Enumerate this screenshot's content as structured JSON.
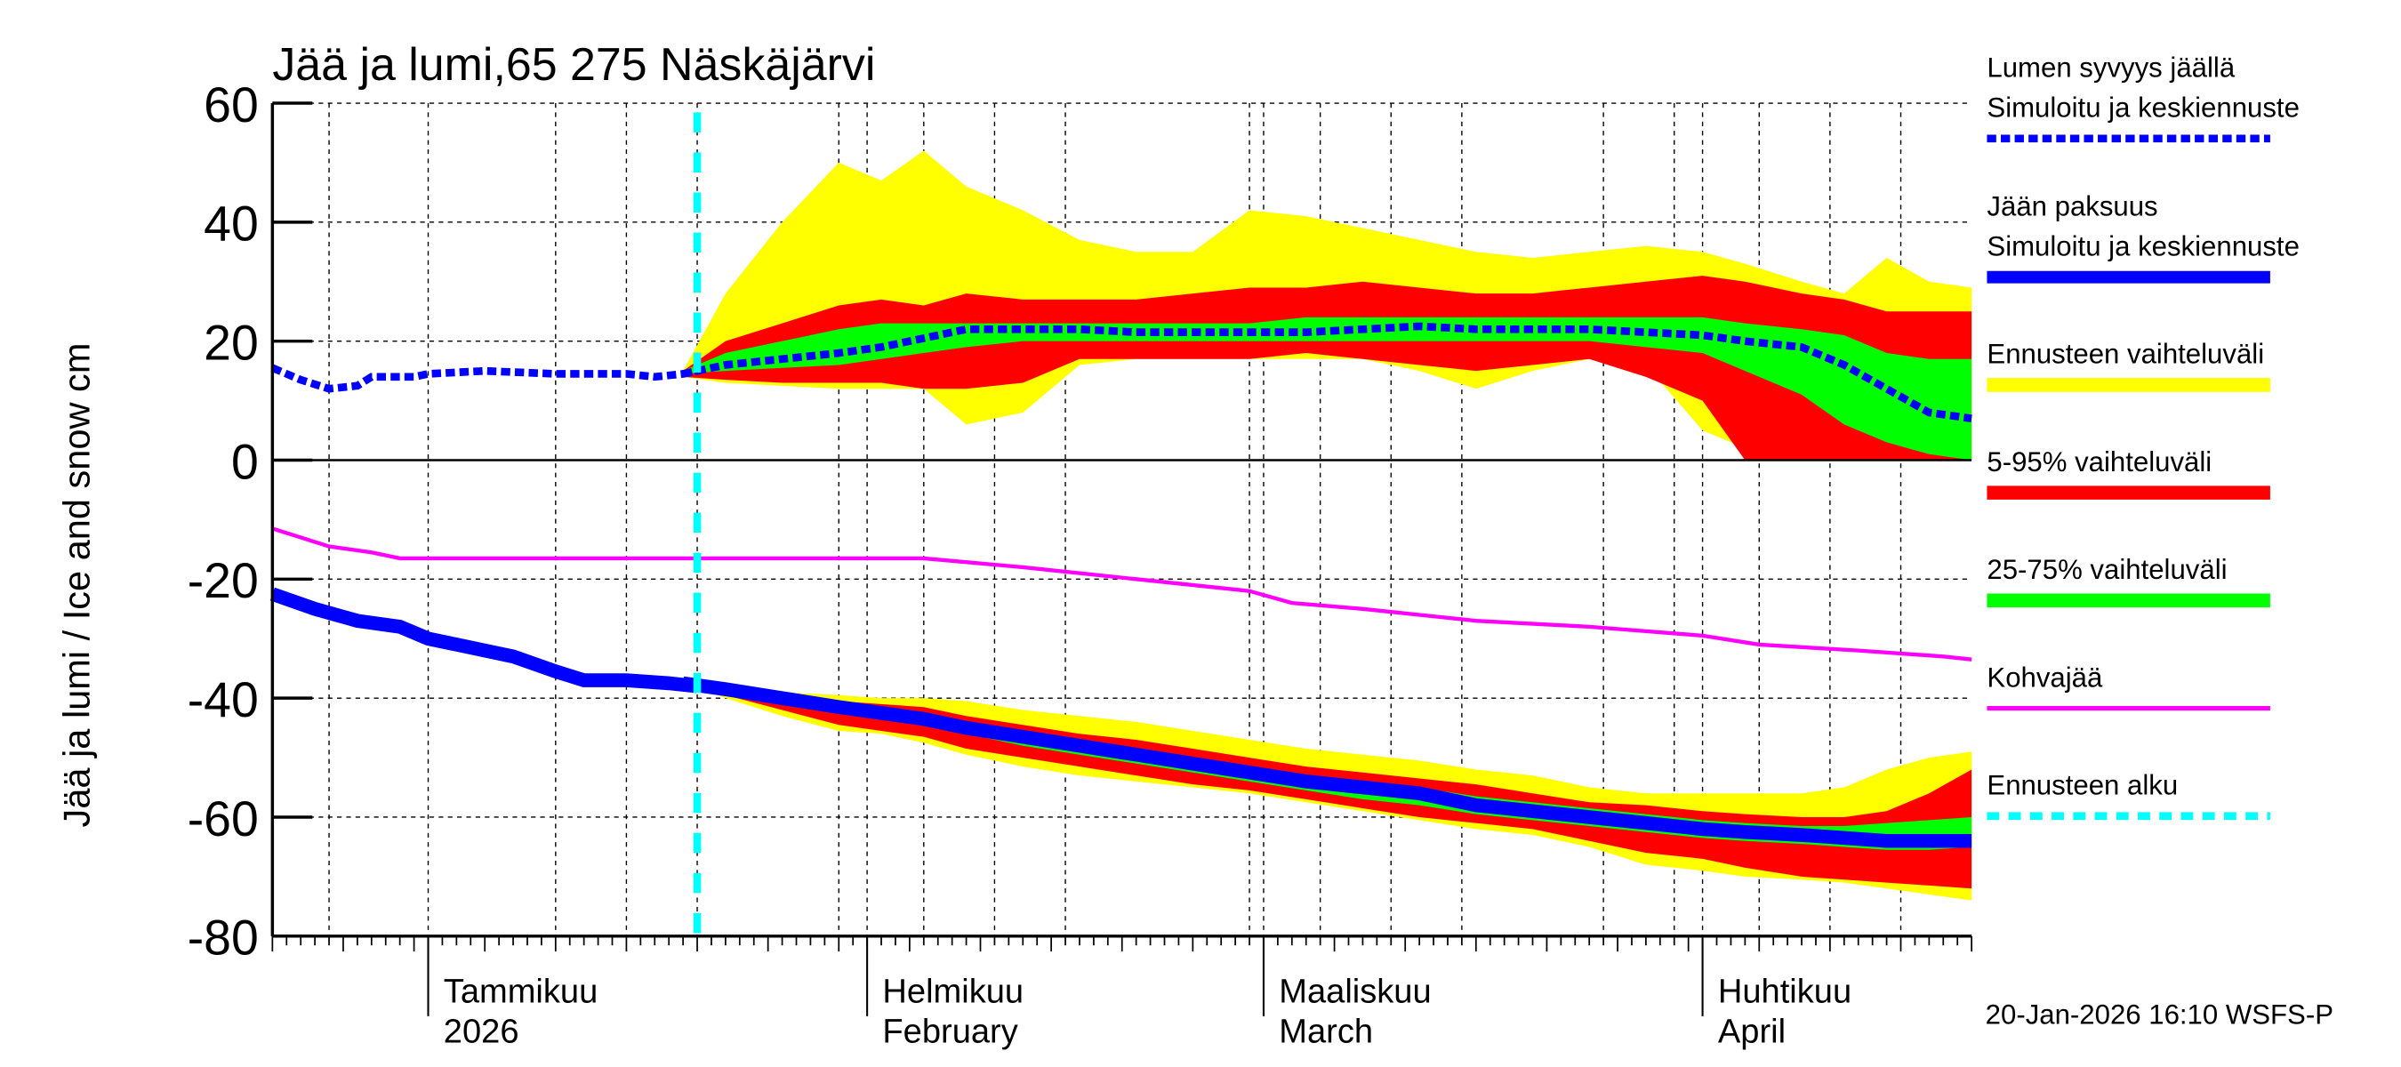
{
  "chart_data": {
    "type": "area",
    "title": "Jää ja lumi,65 275 Näskäjärvi",
    "ylabel": "Jää ja lumi / Ice and snow    cm",
    "ylim": [
      -80,
      60
    ],
    "yticks": [
      60,
      40,
      20,
      0,
      -20,
      -40,
      -60,
      -80
    ],
    "xlim": [
      "2025-12-21",
      "2026-04-20"
    ],
    "grid": true,
    "legend_position": "right",
    "month_labels": [
      {
        "fi": "Tammikuu",
        "en": "2026",
        "date": "2026-01-01"
      },
      {
        "fi": "Helmikuu",
        "en": "February",
        "date": "2026-02-01"
      },
      {
        "fi": "Maaliskuu",
        "en": "March",
        "date": "2026-03-01"
      },
      {
        "fi": "Huhtikuu",
        "en": "April",
        "date": "2026-04-01"
      }
    ],
    "forecast_start": "2026-01-20",
    "footer": "20-Jan-2026 16:10 WSFS-P",
    "legend": [
      {
        "title": "Lumen syvyys jäällä",
        "label": "Simuloitu ja keskiennuste",
        "color": "#0000ff",
        "style": "dotted-thick"
      },
      {
        "title": "Jään paksuus",
        "label": "Simuloitu ja keskiennuste",
        "color": "#0000ff",
        "style": "solid-thick"
      },
      {
        "title": "",
        "label": "Ennusteen vaihteluväli",
        "color": "#ffff00",
        "style": "band"
      },
      {
        "title": "",
        "label": "5-95% vaihteluväli",
        "color": "#ff0000",
        "style": "band"
      },
      {
        "title": "",
        "label": "25-75% vaihteluväli",
        "color": "#00ff00",
        "style": "band"
      },
      {
        "title": "",
        "label": "Kohvajää",
        "color": "#ff00ff",
        "style": "solid"
      },
      {
        "title": "",
        "label": "Ennusteen alku",
        "color": "#00ffff",
        "style": "dashed"
      }
    ],
    "history": {
      "snow": {
        "x": [
          "2025-12-21",
          "2025-12-23",
          "2025-12-25",
          "2025-12-27",
          "2025-12-28",
          "2025-12-31",
          "2026-01-01",
          "2026-01-05",
          "2026-01-10",
          "2026-01-15",
          "2026-01-17",
          "2026-01-19",
          "2026-01-20"
        ],
        "y": [
          15.5,
          13.5,
          12,
          12.5,
          14,
          14,
          14.5,
          15,
          14.5,
          14.5,
          14,
          14.5,
          15
        ]
      },
      "ice": {
        "x": [
          "2025-12-21",
          "2025-12-24",
          "2025-12-27",
          "2025-12-30",
          "2026-01-01",
          "2026-01-03",
          "2026-01-05",
          "2026-01-07",
          "2026-01-10",
          "2026-01-12",
          "2026-01-15",
          "2026-01-18",
          "2026-01-20"
        ],
        "y": [
          -22.5,
          -25,
          -27,
          -28,
          -30,
          -31,
          -32,
          -33,
          -35.5,
          -37,
          -37,
          -37.5,
          -38
        ]
      },
      "slush_ice": {
        "x": [
          "2025-12-21",
          "2025-12-23",
          "2025-12-25",
          "2025-12-28",
          "2025-12-30",
          "2026-02-05",
          "2026-02-12",
          "2026-02-20",
          "2026-02-28",
          "2026-03-03",
          "2026-03-08",
          "2026-03-12",
          "2026-03-16",
          "2026-03-24",
          "2026-04-01",
          "2026-04-05",
          "2026-04-12",
          "2026-04-18",
          "2026-04-20"
        ],
        "y": [
          -11.5,
          -13,
          -14.5,
          -15.5,
          -16.5,
          -16.5,
          -18,
          -20,
          -22,
          -24,
          -25,
          -26,
          -27,
          -28,
          -29.5,
          -31,
          -32,
          -33,
          -33.5
        ]
      }
    },
    "forecast": {
      "x": [
        "2026-01-19",
        "2026-01-22",
        "2026-01-26",
        "2026-01-30",
        "2026-02-02",
        "2026-02-05",
        "2026-02-08",
        "2026-02-12",
        "2026-02-16",
        "2026-02-20",
        "2026-02-24",
        "2026-02-28",
        "2026-03-04",
        "2026-03-08",
        "2026-03-12",
        "2026-03-16",
        "2026-03-20",
        "2026-03-24",
        "2026-03-28",
        "2026-04-01",
        "2026-04-04",
        "2026-04-08",
        "2026-04-11",
        "2026-04-14",
        "2026-04-17",
        "2026-04-20"
      ],
      "snow": {
        "median": [
          14.5,
          16,
          17,
          18,
          19,
          20.5,
          22,
          22,
          22,
          21.5,
          21.5,
          21.5,
          21.5,
          22,
          22.5,
          22,
          22,
          22,
          21.5,
          21,
          20,
          19,
          16,
          12,
          8,
          7
        ],
        "range_hi": [
          15,
          28,
          40,
          50,
          47,
          52,
          46,
          42,
          37,
          35,
          35,
          42,
          41,
          39,
          37,
          35,
          34,
          35,
          36,
          35,
          33,
          30,
          28,
          34,
          30,
          29
        ],
        "range_lo": [
          14,
          13,
          12.5,
          12,
          12,
          12,
          6,
          8,
          16,
          17,
          17,
          17,
          17,
          17,
          15,
          12,
          15,
          17,
          16,
          5,
          2,
          0,
          0,
          0,
          0,
          0
        ],
        "p95": [
          15,
          20,
          23,
          26,
          27,
          26,
          28,
          27,
          27,
          27,
          28,
          29,
          29,
          30,
          29,
          28,
          28,
          29,
          30,
          31,
          30,
          28,
          27,
          25,
          25,
          25
        ],
        "p5": [
          14,
          13.5,
          13,
          13,
          13,
          12,
          12,
          13,
          17,
          17,
          17,
          17,
          18,
          17,
          16,
          15,
          16,
          17,
          14,
          10,
          0,
          0,
          0,
          0,
          0,
          0
        ],
        "p75": [
          15,
          18,
          20,
          22,
          23,
          23,
          23,
          23,
          23,
          23,
          23,
          23,
          24,
          24,
          24,
          24,
          24,
          24,
          24,
          24,
          23,
          22,
          21,
          18,
          17,
          17
        ],
        "p25": [
          14.5,
          15,
          15.5,
          16,
          17,
          18,
          19,
          20,
          20,
          20,
          20,
          20,
          20,
          20,
          20,
          20,
          20,
          20,
          19,
          18,
          15,
          11,
          6,
          3,
          1,
          0
        ]
      },
      "ice": {
        "median": [
          -37.5,
          -38.5,
          -40,
          -41.5,
          -42.5,
          -43.5,
          -45,
          -46.5,
          -48,
          -49.5,
          -51,
          -52.5,
          -54,
          -55,
          -56,
          -58,
          -59,
          -60,
          -61,
          -62,
          -62.5,
          -63,
          -63.5,
          -64,
          -64,
          -64
        ],
        "range_hi": [
          -37.5,
          -38.5,
          -39,
          -39.5,
          -40,
          -40,
          -40.5,
          -42,
          -43,
          -44,
          -45.5,
          -47,
          -48.5,
          -49.5,
          -50.5,
          -52,
          -53,
          -55,
          -56,
          -56,
          -56,
          -56,
          -55,
          -52,
          -50,
          -49
        ],
        "range_lo": [
          -37.5,
          -40,
          -43,
          -45.5,
          -46,
          -47.5,
          -49.5,
          -51.5,
          -53,
          -54,
          -55,
          -56,
          -57.5,
          -59,
          -60.5,
          -62,
          -63,
          -65,
          -68,
          -69,
          -70,
          -70.5,
          -71,
          -72,
          -73,
          -74
        ],
        "p95": [
          -37.5,
          -38.5,
          -39.5,
          -40.5,
          -41,
          -41.5,
          -43,
          -44.5,
          -46,
          -47,
          -48.5,
          -50,
          -51.5,
          -52.5,
          -53.5,
          -54.5,
          -56,
          -57.5,
          -58,
          -59,
          -59.5,
          -60,
          -60,
          -59,
          -56,
          -52
        ],
        "p5": [
          -37.5,
          -39.5,
          -42,
          -44.5,
          -45.5,
          -46.5,
          -48.5,
          -50,
          -51.5,
          -53,
          -54.5,
          -55.5,
          -57,
          -58.5,
          -60,
          -61,
          -62,
          -64,
          -66,
          -67,
          -68.5,
          -70,
          -70.5,
          -71,
          -71.5,
          -72
        ],
        "p75": [
          -37.5,
          -38,
          -39.5,
          -41,
          -42,
          -43,
          -44.5,
          -46,
          -47,
          -48.5,
          -50,
          -51.5,
          -53,
          -54,
          -55,
          -56.5,
          -57.5,
          -58.5,
          -59.5,
          -60.5,
          -61,
          -61.5,
          -61.5,
          -61,
          -60.5,
          -60
        ],
        "p25": [
          -37.5,
          -39,
          -41,
          -42.5,
          -43.5,
          -44.5,
          -46,
          -48,
          -49.5,
          -51,
          -52.5,
          -54,
          -55.5,
          -57,
          -58,
          -59.5,
          -60.5,
          -61.5,
          -62.5,
          -63.5,
          -64,
          -64.5,
          -65,
          -65.5,
          -65.5,
          -65
        ]
      }
    }
  }
}
